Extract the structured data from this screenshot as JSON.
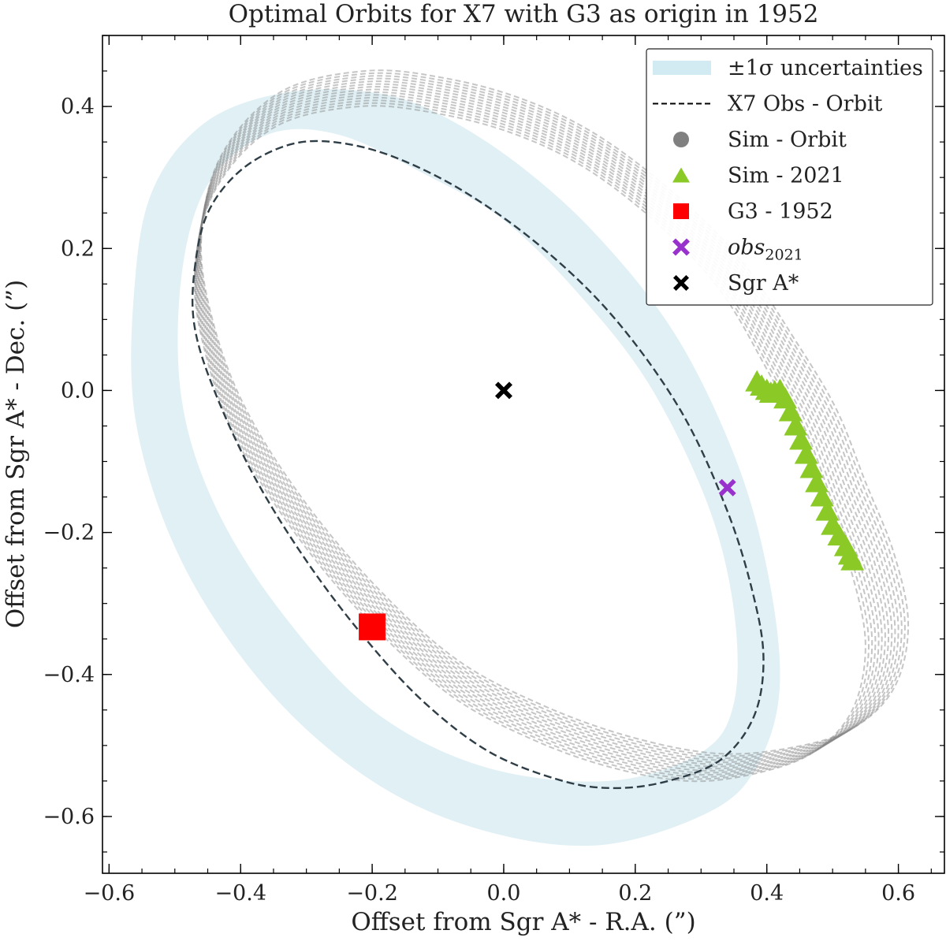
{
  "chart_data": {
    "type": "scatter",
    "title": "Optimal Orbits for X7 with G3 as origin in 1952",
    "xlabel": "Offset from Sgr A* - R.A. (”)",
    "ylabel": "Offset from Sgr A* - Dec. (”)",
    "xlim": [
      -0.61,
      0.67
    ],
    "ylim": [
      -0.68,
      0.5
    ],
    "xticks": [
      -0.6,
      -0.4,
      -0.2,
      0.0,
      0.2,
      0.4,
      0.6
    ],
    "xtick_labels": [
      "−0.6",
      "−0.4",
      "−0.2",
      "0.0",
      "0.2",
      "0.4",
      "0.6"
    ],
    "yticks": [
      0.4,
      0.2,
      0.0,
      -0.2,
      -0.4,
      -0.6
    ],
    "ytick_labels": [
      "0.4",
      "0.2",
      "0.0",
      "−0.2",
      "−0.4",
      "−0.6"
    ],
    "legend_position": "top-right",
    "legend": [
      {
        "key": "uncertainty",
        "label": "±1σ uncertainties"
      },
      {
        "key": "x7_orbit",
        "label": "X7 Obs - Orbit"
      },
      {
        "key": "sim_orbit",
        "label": "Sim - Orbit"
      },
      {
        "key": "sim_2021",
        "label": "Sim - 2021"
      },
      {
        "key": "g3_1952",
        "label": "G3 - 1952"
      },
      {
        "key": "obs_2021",
        "label": "obs",
        "subscript": "2021"
      },
      {
        "key": "sgr_a",
        "label": "Sgr A*"
      }
    ],
    "colors": {
      "uncertainty": "#add8e6",
      "x7_orbit": "#2f3e46",
      "sim_orbit": "#808080",
      "sim_2021": "#8ac926",
      "g3_1952": "#ff0000",
      "obs_2021": "#9932cc",
      "sgr_a": "#000000"
    },
    "uncertainty_band": {
      "outer": [
        [
          -0.56,
          0.16
        ],
        [
          -0.53,
          0.29
        ],
        [
          -0.45,
          0.38
        ],
        [
          -0.33,
          0.42
        ],
        [
          -0.2,
          0.42
        ],
        [
          -0.1,
          0.39
        ],
        [
          0.02,
          0.32
        ],
        [
          0.14,
          0.22
        ],
        [
          0.26,
          0.08
        ],
        [
          0.35,
          -0.09
        ],
        [
          0.4,
          -0.25
        ],
        [
          0.42,
          -0.41
        ],
        [
          0.39,
          -0.52
        ],
        [
          0.32,
          -0.59
        ],
        [
          0.15,
          -0.64
        ],
        [
          -0.03,
          -0.62
        ],
        [
          -0.2,
          -0.55
        ],
        [
          -0.36,
          -0.42
        ],
        [
          -0.49,
          -0.24
        ],
        [
          -0.56,
          -0.04
        ]
      ],
      "inner": [
        [
          -0.49,
          0.16
        ],
        [
          -0.45,
          0.29
        ],
        [
          -0.36,
          0.36
        ],
        [
          -0.25,
          0.36
        ],
        [
          -0.11,
          0.3
        ],
        [
          0.0,
          0.24
        ],
        [
          0.11,
          0.14
        ],
        [
          0.22,
          0.01
        ],
        [
          0.31,
          -0.16
        ],
        [
          0.35,
          -0.31
        ],
        [
          0.35,
          -0.44
        ],
        [
          0.3,
          -0.51
        ],
        [
          0.16,
          -0.55
        ],
        [
          -0.03,
          -0.53
        ],
        [
          -0.2,
          -0.45
        ],
        [
          -0.34,
          -0.31
        ],
        [
          -0.44,
          -0.16
        ],
        [
          -0.49,
          -0.01
        ]
      ]
    },
    "x7_orbit": {
      "points": [
        [
          -0.47,
          0.17
        ],
        [
          -0.45,
          0.25
        ],
        [
          -0.4,
          0.31
        ],
        [
          -0.33,
          0.345
        ],
        [
          -0.26,
          0.35
        ],
        [
          -0.17,
          0.33
        ],
        [
          -0.06,
          0.28
        ],
        [
          0.06,
          0.2
        ],
        [
          0.17,
          0.1
        ],
        [
          0.27,
          -0.03
        ],
        [
          0.34,
          -0.17
        ],
        [
          0.38,
          -0.29
        ],
        [
          0.395,
          -0.38
        ],
        [
          0.38,
          -0.46
        ],
        [
          0.33,
          -0.52
        ],
        [
          0.25,
          -0.55
        ],
        [
          0.17,
          -0.56
        ],
        [
          0.09,
          -0.55
        ],
        [
          -0.02,
          -0.51
        ],
        [
          -0.12,
          -0.44
        ],
        [
          -0.21,
          -0.35
        ],
        [
          -0.3,
          -0.24
        ],
        [
          -0.38,
          -0.12
        ],
        [
          -0.44,
          0.0
        ],
        [
          -0.47,
          0.09
        ]
      ],
      "closed": true
    },
    "sim_orbits": {
      "base": [
        [
          -0.47,
          0.16
        ],
        [
          -0.44,
          0.28
        ],
        [
          -0.35,
          0.37
        ],
        [
          -0.22,
          0.4
        ],
        [
          -0.1,
          0.39
        ],
        [
          0.02,
          0.36
        ],
        [
          0.13,
          0.31
        ],
        [
          0.24,
          0.23
        ],
        [
          0.33,
          0.14
        ],
        [
          0.4,
          0.03
        ],
        [
          0.45,
          -0.06
        ],
        [
          0.49,
          -0.16
        ],
        [
          0.53,
          -0.26
        ],
        [
          0.55,
          -0.36
        ],
        [
          0.53,
          -0.45
        ],
        [
          0.47,
          -0.51
        ],
        [
          0.38,
          -0.54
        ],
        [
          0.28,
          -0.55
        ],
        [
          0.16,
          -0.53
        ],
        [
          0.04,
          -0.49
        ],
        [
          -0.08,
          -0.43
        ],
        [
          -0.2,
          -0.33
        ],
        [
          -0.31,
          -0.21
        ],
        [
          -0.4,
          -0.08
        ],
        [
          -0.45,
          0.04
        ]
      ],
      "count": 14
    },
    "sim_2021": {
      "points": [
        [
          0.385,
          0.012
        ],
        [
          0.392,
          0.006
        ],
        [
          0.4,
          0.0
        ],
        [
          0.406,
          -0.004
        ],
        [
          0.412,
          -0.002
        ],
        [
          0.42,
          0.0
        ],
        [
          0.428,
          -0.012
        ],
        [
          0.436,
          -0.03
        ],
        [
          0.444,
          -0.05
        ],
        [
          0.452,
          -0.07
        ],
        [
          0.46,
          -0.09
        ],
        [
          0.468,
          -0.11
        ],
        [
          0.476,
          -0.13
        ],
        [
          0.484,
          -0.15
        ],
        [
          0.492,
          -0.17
        ],
        [
          0.5,
          -0.19
        ],
        [
          0.51,
          -0.205
        ],
        [
          0.52,
          -0.22
        ],
        [
          0.526,
          -0.232
        ],
        [
          0.53,
          -0.24
        ]
      ]
    },
    "g3_1952": {
      "x": -0.2,
      "y": -0.333
    },
    "obs_2021": {
      "x": 0.34,
      "y": -0.137
    },
    "sgr_a": {
      "x": 0.0,
      "y": 0.0
    }
  }
}
